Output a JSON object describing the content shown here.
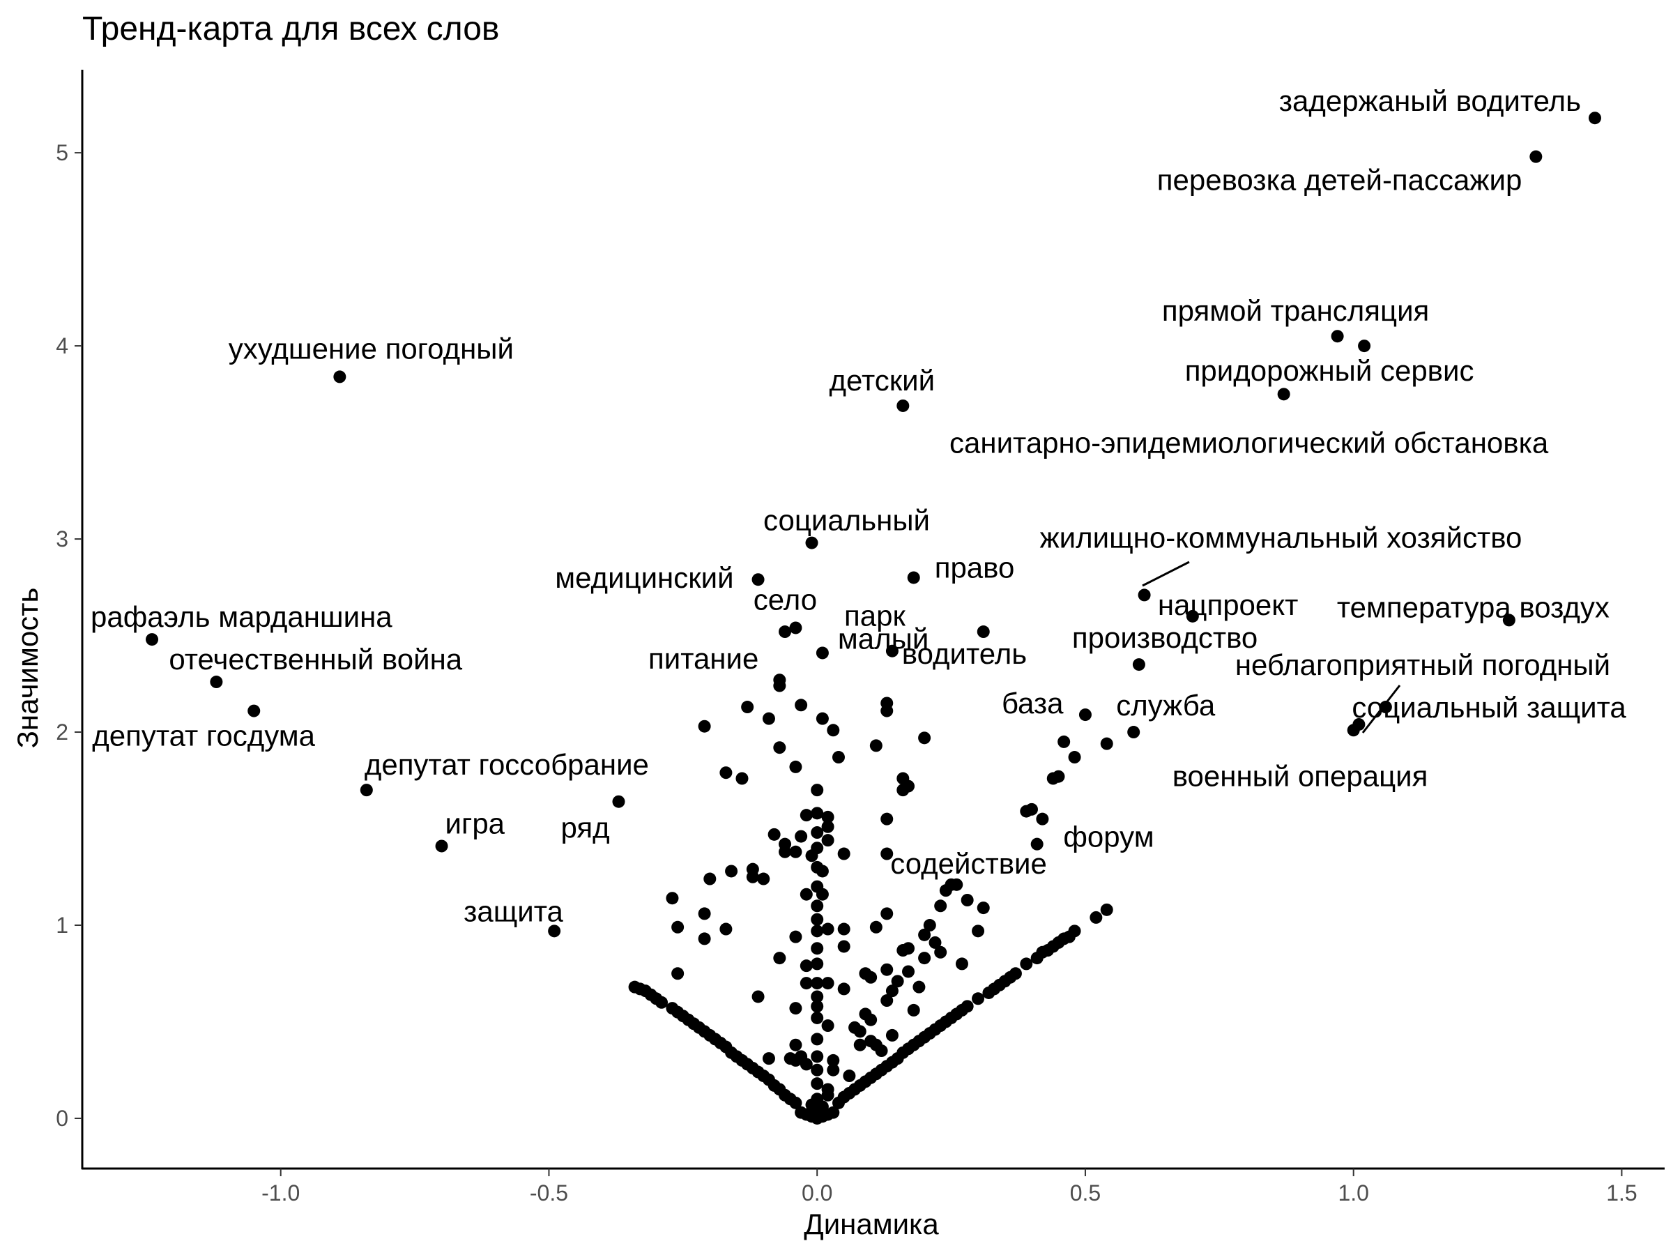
{
  "chart_data": {
    "type": "scatter",
    "title": "Тренд-карта для всех слов",
    "xlabel": "Динамика",
    "ylabel": "Значимость",
    "xlim": [
      -1.37,
      1.58
    ],
    "ylim": [
      -0.26,
      5.43
    ],
    "x_ticks": [
      -1.0,
      -0.5,
      0.0,
      0.5,
      1.0,
      1.5
    ],
    "x_tick_labels": [
      "-1.0",
      "-0.5",
      "0.0",
      "0.5",
      "1.0",
      "1.5"
    ],
    "y_ticks": [
      0,
      1,
      2,
      3,
      4,
      5
    ],
    "y_tick_labels": [
      "0",
      "1",
      "2",
      "3",
      "4",
      "5"
    ],
    "grid": false,
    "point_color": "#000000",
    "labeled_points": [
      {
        "x": 1.45,
        "y": 5.18,
        "label": "задержаный водитель"
      },
      {
        "x": 1.34,
        "y": 4.98,
        "label": "перевозка детей-пассажир"
      },
      {
        "x": 0.97,
        "y": 4.05,
        "label": "прямой трансляция"
      },
      {
        "x": 1.02,
        "y": 4.0,
        "label": "придорожный сервис"
      },
      {
        "x": 0.87,
        "y": 3.75,
        "label": "санитарно-эпидемиологический обстановка"
      },
      {
        "x": -0.89,
        "y": 3.84,
        "label": "ухудшение погодный"
      },
      {
        "x": 0.16,
        "y": 3.69,
        "label": "детский"
      },
      {
        "x": -0.01,
        "y": 2.98,
        "label": "социальный"
      },
      {
        "x": -0.11,
        "y": 2.79,
        "label": "медицинский"
      },
      {
        "x": 0.18,
        "y": 2.8,
        "label": "право"
      },
      {
        "x": 0.61,
        "y": 2.71,
        "label": "жилищно-коммунальный хозяйство"
      },
      {
        "x": 0.7,
        "y": 2.6,
        "label": "нацпроект"
      },
      {
        "x": 1.29,
        "y": 2.58,
        "label": "температура воздух"
      },
      {
        "x": -0.04,
        "y": 2.54,
        "label": "село"
      },
      {
        "x": 0.14,
        "y": 2.42,
        "label": "парк"
      },
      {
        "x": 0.01,
        "y": 2.41,
        "label": "малый"
      },
      {
        "x": 0.31,
        "y": 2.52,
        "label": "водитель"
      },
      {
        "x": 0.6,
        "y": 2.35,
        "label": "производство"
      },
      {
        "x": 1.06,
        "y": 2.13,
        "label": "неблагоприятный погодный"
      },
      {
        "x": 1.01,
        "y": 2.04,
        "label": "социальный защита"
      },
      {
        "x": -0.07,
        "y": 2.27,
        "label": "питание"
      },
      {
        "x": -1.24,
        "y": 2.48,
        "label": "рафаэль марданшина"
      },
      {
        "x": -1.12,
        "y": 2.26,
        "label": "отечественный война"
      },
      {
        "x": -1.05,
        "y": 2.11,
        "label": "депутат госдума"
      },
      {
        "x": 0.5,
        "y": 2.09,
        "label": "база"
      },
      {
        "x": 0.59,
        "y": 2.0,
        "label": "служба"
      },
      {
        "x": 1.0,
        "y": 2.01,
        "label": "военный операция"
      },
      {
        "x": -0.84,
        "y": 1.7,
        "label": "депутат госсобрание"
      },
      {
        "x": -0.37,
        "y": 1.64,
        "label": "ряд"
      },
      {
        "x": -0.7,
        "y": 1.41,
        "label": "игра"
      },
      {
        "x": 0.42,
        "y": 1.55,
        "label": "форум"
      },
      {
        "x": 0.26,
        "y": 1.21,
        "label": "содействие"
      },
      {
        "x": -0.49,
        "y": 0.97,
        "label": "защита"
      }
    ],
    "points": [
      [
        0.0,
        0.0
      ],
      [
        0.01,
        0.01
      ],
      [
        -0.01,
        0.01
      ],
      [
        0.02,
        0.02
      ],
      [
        -0.02,
        0.02
      ],
      [
        0.03,
        0.03
      ],
      [
        -0.03,
        0.03
      ],
      [
        0.0,
        0.04
      ],
      [
        0.01,
        0.06
      ],
      [
        -0.01,
        0.07
      ],
      [
        0.0,
        0.1
      ],
      [
        0.02,
        0.12
      ],
      [
        0.04,
        0.08
      ],
      [
        -0.04,
        0.08
      ],
      [
        0.05,
        0.11
      ],
      [
        -0.05,
        0.1
      ],
      [
        0.06,
        0.13
      ],
      [
        -0.06,
        0.12
      ],
      [
        0.07,
        0.15
      ],
      [
        -0.07,
        0.15
      ],
      [
        0.08,
        0.17
      ],
      [
        -0.08,
        0.17
      ],
      [
        0.09,
        0.19
      ],
      [
        -0.09,
        0.2
      ],
      [
        0.1,
        0.21
      ],
      [
        -0.1,
        0.22
      ],
      [
        0.11,
        0.23
      ],
      [
        -0.11,
        0.24
      ],
      [
        0.12,
        0.25
      ],
      [
        -0.12,
        0.26
      ],
      [
        0.13,
        0.27
      ],
      [
        -0.13,
        0.28
      ],
      [
        0.14,
        0.29
      ],
      [
        -0.14,
        0.3
      ],
      [
        0.15,
        0.31
      ],
      [
        -0.15,
        0.32
      ],
      [
        0.16,
        0.34
      ],
      [
        -0.16,
        0.34
      ],
      [
        0.17,
        0.36
      ],
      [
        -0.17,
        0.37
      ],
      [
        0.18,
        0.38
      ],
      [
        -0.18,
        0.39
      ],
      [
        0.19,
        0.4
      ],
      [
        -0.19,
        0.41
      ],
      [
        0.2,
        0.42
      ],
      [
        -0.2,
        0.43
      ],
      [
        0.21,
        0.44
      ],
      [
        -0.21,
        0.45
      ],
      [
        0.22,
        0.46
      ],
      [
        -0.22,
        0.47
      ],
      [
        0.23,
        0.48
      ],
      [
        -0.23,
        0.49
      ],
      [
        0.24,
        0.5
      ],
      [
        -0.24,
        0.51
      ],
      [
        0.25,
        0.52
      ],
      [
        -0.25,
        0.53
      ],
      [
        0.26,
        0.54
      ],
      [
        -0.26,
        0.55
      ],
      [
        0.27,
        0.56
      ],
      [
        -0.27,
        0.57
      ],
      [
        0.28,
        0.58
      ],
      [
        -0.29,
        0.6
      ],
      [
        0.3,
        0.62
      ],
      [
        -0.3,
        0.62
      ],
      [
        0.32,
        0.65
      ],
      [
        -0.31,
        0.64
      ],
      [
        0.33,
        0.67
      ],
      [
        -0.32,
        0.66
      ],
      [
        0.34,
        0.69
      ],
      [
        -0.33,
        0.67
      ],
      [
        0.35,
        0.71
      ],
      [
        -0.34,
        0.68
      ],
      [
        0.36,
        0.73
      ],
      [
        0.37,
        0.75
      ],
      [
        0.39,
        0.8
      ],
      [
        0.41,
        0.83
      ],
      [
        0.42,
        0.86
      ],
      [
        0.43,
        0.87
      ],
      [
        0.44,
        0.89
      ],
      [
        0.45,
        0.91
      ],
      [
        0.46,
        0.93
      ],
      [
        0.47,
        0.94
      ],
      [
        0.48,
        0.97
      ],
      [
        0.52,
        1.04
      ],
      [
        0.54,
        1.08
      ],
      [
        0.0,
        0.18
      ],
      [
        0.0,
        0.25
      ],
      [
        0.0,
        0.32
      ],
      [
        0.0,
        0.41
      ],
      [
        0.0,
        0.52
      ],
      [
        0.0,
        0.58
      ],
      [
        0.0,
        0.63
      ],
      [
        0.0,
        0.7
      ],
      [
        0.0,
        0.8
      ],
      [
        0.0,
        0.88
      ],
      [
        0.0,
        0.97
      ],
      [
        0.0,
        1.03
      ],
      [
        0.0,
        1.1
      ],
      [
        0.0,
        1.2
      ],
      [
        0.0,
        1.3
      ],
      [
        0.0,
        1.4
      ],
      [
        0.0,
        1.48
      ],
      [
        0.0,
        1.58
      ],
      [
        0.0,
        1.7
      ],
      [
        -0.02,
        1.57
      ],
      [
        -0.03,
        1.46
      ],
      [
        0.02,
        1.44
      ],
      [
        0.02,
        1.56
      ],
      [
        0.02,
        1.51
      ],
      [
        -0.01,
        1.36
      ],
      [
        0.01,
        1.28
      ],
      [
        -0.02,
        1.16
      ],
      [
        0.01,
        1.16
      ],
      [
        0.02,
        0.98
      ],
      [
        -0.02,
        0.79
      ],
      [
        -0.02,
        0.7
      ],
      [
        -0.04,
        0.94
      ],
      [
        -0.04,
        0.57
      ],
      [
        -0.04,
        0.3
      ],
      [
        -0.02,
        0.28
      ],
      [
        0.03,
        0.3
      ],
      [
        0.02,
        0.7
      ],
      [
        0.02,
        0.48
      ],
      [
        -0.04,
        0.38
      ],
      [
        -0.04,
        1.38
      ],
      [
        0.04,
        1.87
      ],
      [
        -0.04,
        1.82
      ],
      [
        0.01,
        2.07
      ],
      [
        0.03,
        2.01
      ],
      [
        -0.03,
        2.14
      ],
      [
        -0.06,
        2.52
      ],
      [
        -0.07,
        2.24
      ],
      [
        -0.09,
        2.07
      ],
      [
        -0.07,
        1.92
      ],
      [
        -0.06,
        1.38
      ],
      [
        -0.08,
        1.47
      ],
      [
        -0.06,
        1.42
      ],
      [
        -0.13,
        2.13
      ],
      [
        -0.14,
        1.76
      ],
      [
        -0.17,
        1.79
      ],
      [
        -0.21,
        2.03
      ],
      [
        -0.16,
        1.28
      ],
      [
        -0.12,
        1.29
      ],
      [
        -0.12,
        1.25
      ],
      [
        -0.1,
        1.24
      ],
      [
        -0.2,
        1.24
      ],
      [
        -0.27,
        1.14
      ],
      [
        -0.21,
        1.06
      ],
      [
        -0.26,
        0.99
      ],
      [
        -0.17,
        0.98
      ],
      [
        -0.21,
        0.93
      ],
      [
        -0.26,
        0.75
      ],
      [
        -0.11,
        0.63
      ],
      [
        -0.07,
        0.83
      ],
      [
        -0.05,
        0.31
      ],
      [
        -0.03,
        0.32
      ],
      [
        -0.09,
        0.31
      ],
      [
        0.05,
        1.37
      ],
      [
        0.05,
        0.98
      ],
      [
        0.05,
        0.89
      ],
      [
        0.05,
        0.67
      ],
      [
        0.07,
        0.47
      ],
      [
        0.09,
        0.54
      ],
      [
        0.1,
        0.51
      ],
      [
        0.09,
        0.75
      ],
      [
        0.1,
        0.73
      ],
      [
        0.11,
        0.99
      ],
      [
        0.13,
        1.06
      ],
      [
        0.13,
        0.77
      ],
      [
        0.13,
        0.61
      ],
      [
        0.14,
        0.66
      ],
      [
        0.15,
        0.71
      ],
      [
        0.16,
        0.87
      ],
      [
        0.17,
        0.88
      ],
      [
        0.17,
        0.76
      ],
      [
        0.18,
        0.56
      ],
      [
        0.19,
        0.68
      ],
      [
        0.2,
        0.95
      ],
      [
        0.21,
        1.0
      ],
      [
        0.23,
        1.1
      ],
      [
        0.24,
        1.18
      ],
      [
        0.25,
        1.21
      ],
      [
        0.22,
        0.91
      ],
      [
        0.23,
        0.86
      ],
      [
        0.2,
        0.83
      ],
      [
        0.27,
        0.8
      ],
      [
        0.28,
        1.13
      ],
      [
        0.31,
        1.09
      ],
      [
        0.3,
        0.97
      ],
      [
        0.12,
        0.35
      ],
      [
        0.11,
        0.38
      ],
      [
        0.08,
        0.38
      ],
      [
        0.1,
        0.4
      ],
      [
        0.08,
        0.45
      ],
      [
        0.14,
        0.43
      ],
      [
        0.11,
        1.93
      ],
      [
        0.13,
        2.15
      ],
      [
        0.13,
        2.11
      ],
      [
        0.13,
        1.55
      ],
      [
        0.16,
        1.76
      ],
      [
        0.16,
        1.7
      ],
      [
        0.17,
        1.72
      ],
      [
        0.13,
        1.37
      ],
      [
        0.2,
        1.97
      ],
      [
        0.06,
        0.22
      ],
      [
        0.02,
        0.15
      ],
      [
        0.03,
        0.25
      ],
      [
        0.41,
        1.42
      ],
      [
        0.39,
        1.59
      ],
      [
        0.4,
        1.6
      ],
      [
        0.44,
        1.76
      ],
      [
        0.45,
        1.77
      ],
      [
        0.46,
        1.95
      ],
      [
        0.48,
        1.87
      ],
      [
        0.54,
        1.94
      ]
    ]
  }
}
